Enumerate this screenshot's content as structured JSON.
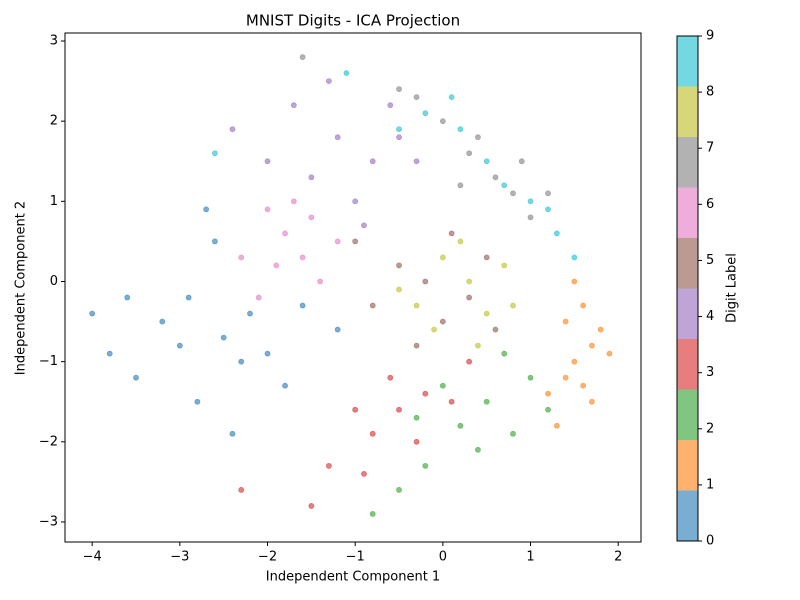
{
  "chart_data": {
    "type": "scatter",
    "title": "MNIST Digits - ICA Projection",
    "xlabel": "Independent Component 1",
    "ylabel": "Independent Component 2",
    "xlim": [
      -4.31,
      2.26
    ],
    "ylim": [
      -3.25,
      3.1
    ],
    "xticks": [
      {
        "value": -4,
        "label": "−4"
      },
      {
        "value": -3,
        "label": "−3"
      },
      {
        "value": -2,
        "label": "−2"
      },
      {
        "value": -1,
        "label": "−1"
      },
      0,
      1,
      2
    ],
    "yticks": [
      {
        "value": -3,
        "label": "−3"
      },
      {
        "value": -2,
        "label": "−2"
      },
      {
        "value": -1,
        "label": "−1"
      },
      0,
      1,
      2,
      3
    ],
    "alpha": 0.6,
    "colorbar": {
      "label": "Digit Label",
      "clim": [
        0,
        9
      ],
      "cticks": [
        0,
        1,
        2,
        3,
        4,
        5,
        6,
        7,
        8,
        9
      ]
    },
    "series": [
      {
        "color": "#1f77b4",
        "x": [
          -4,
          -3.8,
          -3.5,
          -3.2,
          -3,
          -2.8,
          -2.6,
          -2.5,
          -2.3,
          -2.2,
          -2,
          -1.8,
          -1.6,
          -2.7,
          -2.4,
          -1.2,
          -3.6,
          -2.9
        ],
        "values": [
          -0.4,
          -0.9,
          -1.2,
          -0.5,
          -0.8,
          -1.5,
          0.5,
          -0.7,
          -1,
          -0.4,
          -0.9,
          -1.3,
          -0.3,
          0.9,
          -1.9,
          -0.6,
          -0.2,
          -0.2
        ]
      },
      {
        "color": "#ff7f0e",
        "x": [
          1.4,
          1.5,
          1.6,
          1.7,
          1.8,
          1.6,
          1.5,
          1.7,
          1.3,
          1.9,
          1.4,
          1.2
        ],
        "values": [
          -0.5,
          -1,
          -0.3,
          -0.8,
          -0.6,
          -1.3,
          0,
          -1.5,
          -1.8,
          -0.9,
          -1.2,
          -1.4
        ]
      },
      {
        "color": "#2ca02c",
        "x": [
          0.2,
          0.5,
          -0.2,
          0.8,
          0,
          -0.5,
          1,
          0.4,
          -0.3,
          0.7,
          -0.8,
          1.2
        ],
        "values": [
          -1.8,
          -1.5,
          -2.3,
          -1.9,
          -1.3,
          -2.6,
          -1.2,
          -2.1,
          -1.7,
          -0.9,
          -2.9,
          -1.6
        ]
      },
      {
        "color": "#d62728",
        "x": [
          -0.5,
          -0.8,
          -0.2,
          -1,
          -0.3,
          0.1,
          -1.3,
          -0.6,
          -1.5,
          -2.3,
          0.3,
          -0.9
        ],
        "values": [
          -1.6,
          -1.9,
          -1.4,
          -1.6,
          -2,
          -1.5,
          -2.3,
          -1.2,
          -2.8,
          -2.6,
          -1,
          -2.4
        ]
      },
      {
        "color": "#9467bd",
        "x": [
          -0.8,
          -1.2,
          -0.5,
          -1.5,
          -1,
          -0.3,
          -1.7,
          -2,
          -0.6,
          -1.3,
          -2.4,
          -0.9
        ],
        "values": [
          1.5,
          1.8,
          1.8,
          1.3,
          1,
          1.5,
          2.2,
          1.5,
          2.2,
          2.5,
          1.9,
          0.7
        ]
      },
      {
        "color": "#8c564b",
        "x": [
          -0.2,
          0,
          -0.5,
          0.3,
          -0.8,
          0.5,
          -0.3,
          0.1,
          -1,
          0.6
        ],
        "values": [
          0,
          -0.5,
          0.2,
          -0.2,
          -0.3,
          0.3,
          -0.8,
          0.6,
          0.5,
          -0.6
        ]
      },
      {
        "color": "#e377c2",
        "x": [
          -1.8,
          -1.6,
          -2,
          -1.4,
          -1.9,
          -1.7,
          -2.3,
          -1.2,
          -2.1,
          -1.5
        ],
        "values": [
          0.6,
          0.3,
          0.9,
          0,
          0.2,
          1,
          0.3,
          0.5,
          -0.2,
          0.8
        ]
      },
      {
        "color": "#7f7f7f",
        "x": [
          0.3,
          0.6,
          0,
          0.8,
          -0.3,
          1,
          0.4,
          -0.5,
          1.2,
          0.2,
          -1.6,
          0.9
        ],
        "values": [
          1.6,
          1.3,
          2,
          1.1,
          2.3,
          0.8,
          1.8,
          2.4,
          1.1,
          1.2,
          2.8,
          1.5
        ]
      },
      {
        "color": "#bcbd22",
        "x": [
          0,
          0.3,
          -0.3,
          0.5,
          0.2,
          -0.1,
          0.7,
          -0.5,
          0.4,
          0.8
        ],
        "values": [
          0.3,
          0,
          -0.3,
          -0.4,
          0.5,
          -0.6,
          0.2,
          -0.1,
          -0.8,
          -0.3
        ]
      },
      {
        "color": "#17becf",
        "x": [
          0.2,
          0.5,
          -0.2,
          1,
          1.3,
          0.7,
          1.5,
          -0.5,
          0.1,
          1.2,
          -2.6,
          -1.1
        ],
        "values": [
          1.9,
          1.5,
          2.1,
          1,
          0.6,
          1.2,
          0.3,
          1.9,
          2.3,
          0.9,
          1.6,
          2.6
        ]
      }
    ]
  }
}
